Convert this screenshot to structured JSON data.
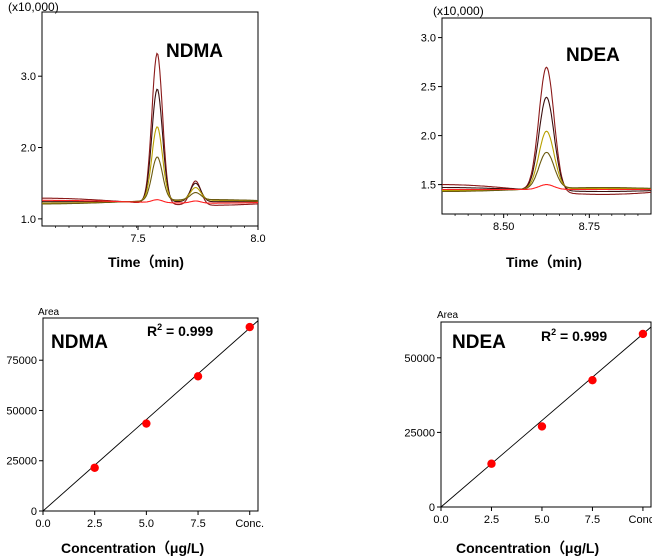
{
  "chart_data": [
    {
      "type": "line",
      "compound": "NDMA",
      "scale_label": "(x10,000)",
      "xlabel": "Time（min)",
      "xlim": [
        7.1,
        8.0
      ],
      "ylim": [
        0.9,
        3.9
      ],
      "xticks": [
        {
          "value": 7.5,
          "label": "7.5"
        },
        {
          "value": 8.0,
          "label": "8.0"
        }
      ],
      "yticks": [
        {
          "value": 1.0,
          "label": "1.0"
        },
        {
          "value": 2.0,
          "label": "2.0"
        },
        {
          "value": 3.0,
          "label": "3.0"
        }
      ],
      "baseline": 1.24,
      "peak_time": 7.58,
      "peak_width": 0.022,
      "secondary_peak_time": 7.74,
      "secondary_peak_width": 0.022,
      "series": [
        {
          "color": "#8b1a1a",
          "peak": 3.35,
          "secondary_peak": 1.58,
          "offset": 0.05
        },
        {
          "color": "#3a1010",
          "peak": 2.82,
          "secondary_peak": 1.5,
          "offset": 0.0
        },
        {
          "color": "#b8a000",
          "peak": 2.28,
          "secondary_peak": 1.42,
          "offset": -0.02
        },
        {
          "color": "#6b5a10",
          "peak": 1.85,
          "secondary_peak": 1.34,
          "offset": -0.03
        },
        {
          "color": "#ff2020",
          "peak": 1.28,
          "secondary_peak": 1.27,
          "offset": 0.02
        }
      ]
    },
    {
      "type": "line",
      "compound": "NDEA",
      "scale_label": "(x10,000)",
      "xlabel": "Time（min)",
      "xlim": [
        8.32,
        8.93
      ],
      "ylim": [
        1.2,
        3.2
      ],
      "xticks": [
        {
          "value": 8.5,
          "label": "8.50"
        },
        {
          "value": 8.75,
          "label": "8.75"
        }
      ],
      "yticks": [
        {
          "value": 1.5,
          "label": "1.5"
        },
        {
          "value": 2.0,
          "label": "2.0"
        },
        {
          "value": 2.5,
          "label": "2.5"
        },
        {
          "value": 3.0,
          "label": "3.0"
        }
      ],
      "baseline": 1.45,
      "peak_time": 8.625,
      "peak_width": 0.022,
      "series": [
        {
          "color": "#8b1a1a",
          "peak": 2.72,
          "offset": 0.05
        },
        {
          "color": "#3a1010",
          "peak": 2.4,
          "offset": 0.02
        },
        {
          "color": "#b8a000",
          "peak": 2.04,
          "offset": -0.01
        },
        {
          "color": "#6b5a10",
          "peak": 1.82,
          "offset": -0.02
        },
        {
          "color": "#ff2020",
          "peak": 1.5,
          "offset": 0.0
        }
      ]
    },
    {
      "type": "scatter",
      "compound": "NDMA",
      "y_unit_label": "Area",
      "xlabel": "Concentration（μg/L)",
      "r2_prefix": "R",
      "r2_sup": "2",
      "r2_suffix": " = 0.999",
      "xlim": [
        0,
        10.4
      ],
      "ylim": [
        0,
        96000
      ],
      "xticks": [
        {
          "value": 0,
          "label": "0.0"
        },
        {
          "value": 2.5,
          "label": "2.5"
        },
        {
          "value": 5.0,
          "label": "5.0"
        },
        {
          "value": 7.5,
          "label": "7.5"
        },
        {
          "value": 10.0,
          "label": "Conc."
        }
      ],
      "yticks": [
        {
          "value": 0,
          "label": "0"
        },
        {
          "value": 25000,
          "label": "25000"
        },
        {
          "value": 50000,
          "label": "50000"
        },
        {
          "value": 75000,
          "label": "75000"
        }
      ],
      "points": [
        {
          "x": 2.5,
          "y": 21500
        },
        {
          "x": 5.0,
          "y": 43500
        },
        {
          "x": 7.5,
          "y": 67000
        },
        {
          "x": 10.0,
          "y": 91500
        }
      ],
      "fit": {
        "slope": 9100,
        "intercept": 0
      },
      "point_color": "#ff0000"
    },
    {
      "type": "scatter",
      "compound": "NDEA",
      "y_unit_label": "Area",
      "xlabel": "Concentration（μg/L)",
      "r2_prefix": "R",
      "r2_sup": "2",
      "r2_suffix": " = 0.999",
      "xlim": [
        0,
        10.4
      ],
      "ylim": [
        0,
        62000
      ],
      "xticks": [
        {
          "value": 0,
          "label": "0.0"
        },
        {
          "value": 2.5,
          "label": "2.5"
        },
        {
          "value": 5.0,
          "label": "5.0"
        },
        {
          "value": 7.5,
          "label": "7.5"
        },
        {
          "value": 10.0,
          "label": "Conc."
        }
      ],
      "yticks": [
        {
          "value": 0,
          "label": "0"
        },
        {
          "value": 25000,
          "label": "25000"
        },
        {
          "value": 50000,
          "label": "50000"
        }
      ],
      "points": [
        {
          "x": 2.5,
          "y": 14500
        },
        {
          "x": 5.0,
          "y": 27000
        },
        {
          "x": 7.5,
          "y": 42500
        },
        {
          "x": 10.0,
          "y": 58000
        }
      ],
      "fit": {
        "slope": 5800,
        "intercept": 0
      },
      "point_color": "#ff0000"
    }
  ]
}
